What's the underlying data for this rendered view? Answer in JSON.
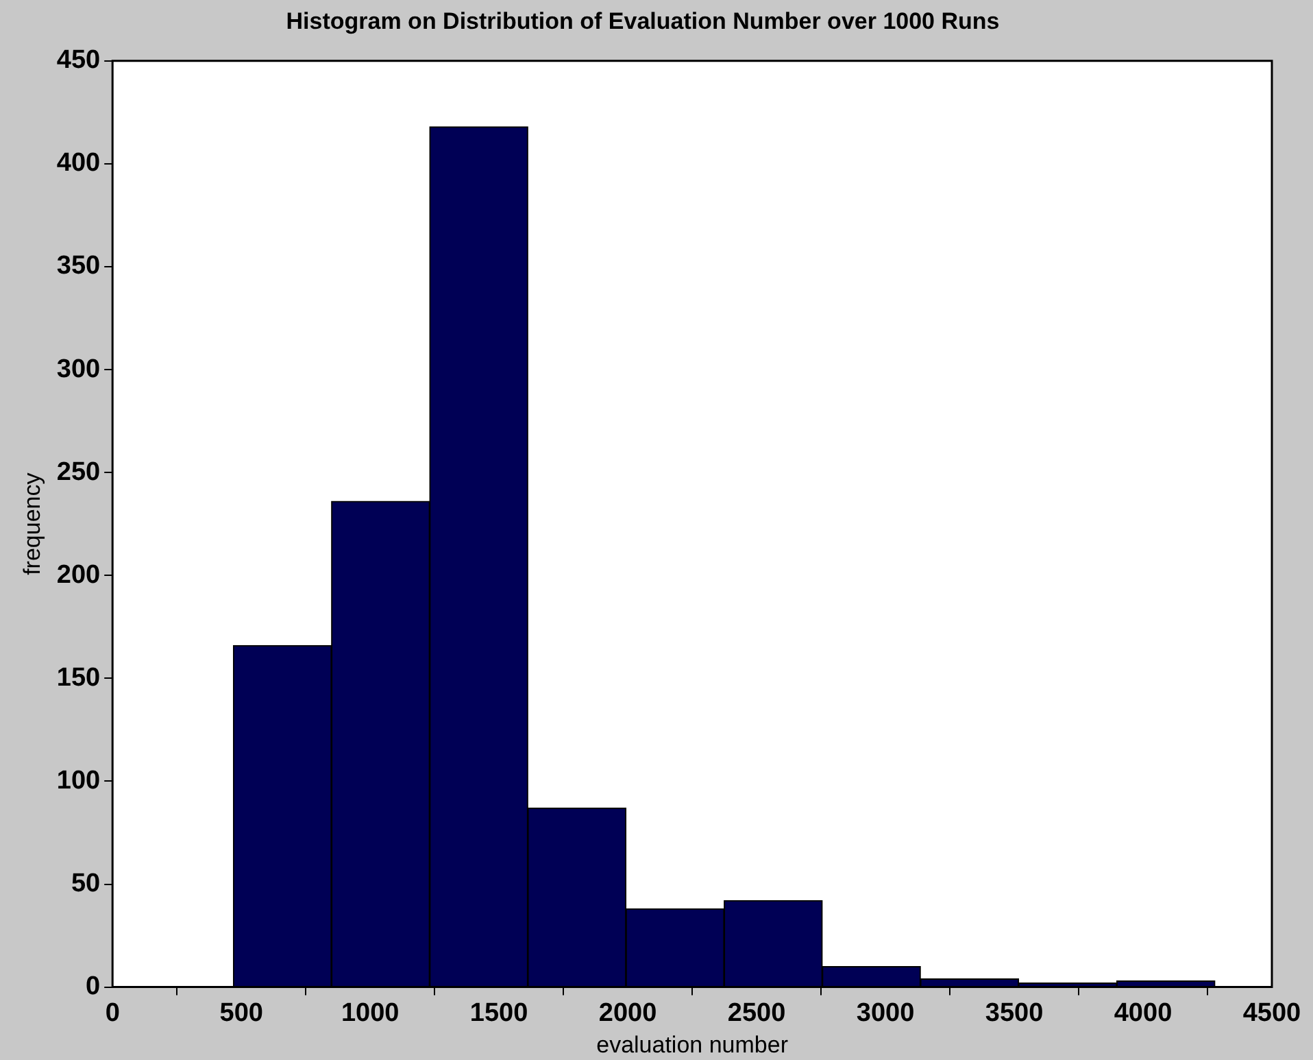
{
  "chart_data": {
    "type": "histogram",
    "title": "Histogram on Distribution of Evaluation Number over 1000 Runs",
    "xlabel": "evaluation number",
    "ylabel": "frequency",
    "bins": [
      469,
      850,
      1231,
      1612,
      1993,
      2374,
      2755,
      3136,
      3517,
      3898,
      4279
    ],
    "values": [
      166,
      236,
      418,
      87,
      38,
      42,
      10,
      4,
      2,
      3
    ],
    "color": "#000055",
    "xlim": [
      0,
      4500
    ],
    "xticks": [
      0,
      500,
      1000,
      1500,
      2000,
      2500,
      3000,
      3500,
      4000,
      4500
    ],
    "ylim": [
      0,
      450
    ],
    "yticks": [
      0,
      50,
      100,
      150,
      200,
      250,
      300,
      350,
      400,
      450
    ],
    "grid": false
  }
}
